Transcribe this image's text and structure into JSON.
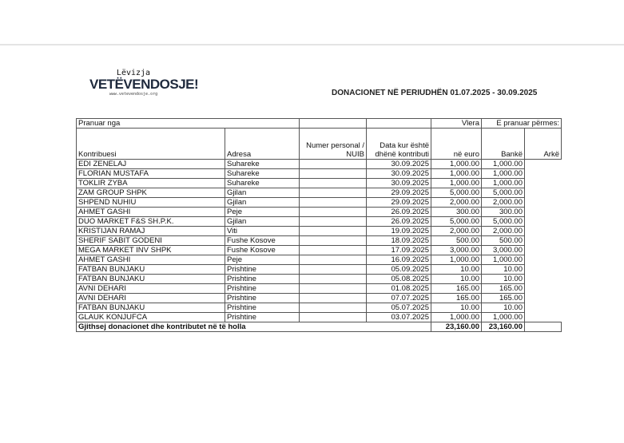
{
  "logo": {
    "line1": "Lëvizja",
    "line2": "VETËVENDOSJE!",
    "line3": "www.vetevendosje.org"
  },
  "title": "DONACIONET NË PERIUDHËN 01.07.2025 - 30.09.2025",
  "table": {
    "group_header": {
      "received_from": "Pranuar nga",
      "value": "Vlera",
      "received_via": "E pranuar përmes:"
    },
    "columns": [
      "Kontribuesi",
      "Adresa",
      "Numer personal / NUIB",
      "Data kur është dhënë kontributi",
      "në euro",
      "Bankë",
      "Arkë"
    ],
    "rows": [
      [
        "EDI ZENELAJ",
        "Suhareke",
        "",
        "30.09.2025",
        "1,000.00",
        "1,000.00",
        ""
      ],
      [
        "FLORIAN MUSTAFA",
        "Suhareke",
        "",
        "30.09.2025",
        "1,000.00",
        "1,000.00",
        ""
      ],
      [
        "TOKLIR ZYBA",
        "Suhareke",
        "",
        "30.09.2025",
        "1,000.00",
        "1,000.00",
        ""
      ],
      [
        "ZAM GROUP SHPK",
        "Gjilan",
        "",
        "29.09.2025",
        "5,000.00",
        "5,000.00",
        ""
      ],
      [
        "SHPEND NUHIU",
        "Gjilan",
        "",
        "29.09.2025",
        "2,000.00",
        "2,000.00",
        ""
      ],
      [
        "AHMET  GASHI",
        "Peje",
        "",
        "26.09.2025",
        "300.00",
        "300.00",
        ""
      ],
      [
        "DUO MARKET F&S SH.P.K.",
        "Gjilan",
        "",
        "26.09.2025",
        "5,000.00",
        "5,000.00",
        ""
      ],
      [
        "KRISTIJAN  RAMAJ",
        "Viti",
        "",
        "19.09.2025",
        "2,000.00",
        "2,000.00",
        ""
      ],
      [
        "SHERIF SABIT GODENI",
        "Fushe Kosove",
        "",
        "18.09.2025",
        "500.00",
        "500.00",
        ""
      ],
      [
        "MEGA  MARKET  INV  SHPK",
        "Fushe Kosove",
        "",
        "17.09.2025",
        "3,000.00",
        "3,000.00",
        ""
      ],
      [
        "AHMET  GASHI",
        "Peje",
        "",
        "16.09.2025",
        "1,000.00",
        "1,000.00",
        ""
      ],
      [
        "FATBAN  BUNJAKU",
        "Prishtine",
        "",
        "05.09.2025",
        "10.00",
        "10.00",
        ""
      ],
      [
        "FATBAN  BUNJAKU",
        "Prishtine",
        "",
        "05.08.2025",
        "10.00",
        "10.00",
        ""
      ],
      [
        "AVNI DEHARI",
        "Prishtine",
        "",
        "01.08.2025",
        "165.00",
        "165.00",
        ""
      ],
      [
        "AVNI DEHARI",
        "Prishtine",
        "",
        "07.07.2025",
        "165.00",
        "165.00",
        ""
      ],
      [
        "FATBAN  BUNJAKU",
        "Prishtine",
        "",
        "05.07.2025",
        "10.00",
        "10.00",
        ""
      ],
      [
        "GLAUK KONJUFCA",
        "Prishtine",
        "",
        "03.07.2025",
        "1,000.00",
        "1,000.00",
        ""
      ]
    ],
    "total": {
      "label": "Gjithsej donacionet dhe kontributet në të holla",
      "euro": "23,160.00",
      "bank": "23,160.00",
      "cash": ""
    }
  }
}
